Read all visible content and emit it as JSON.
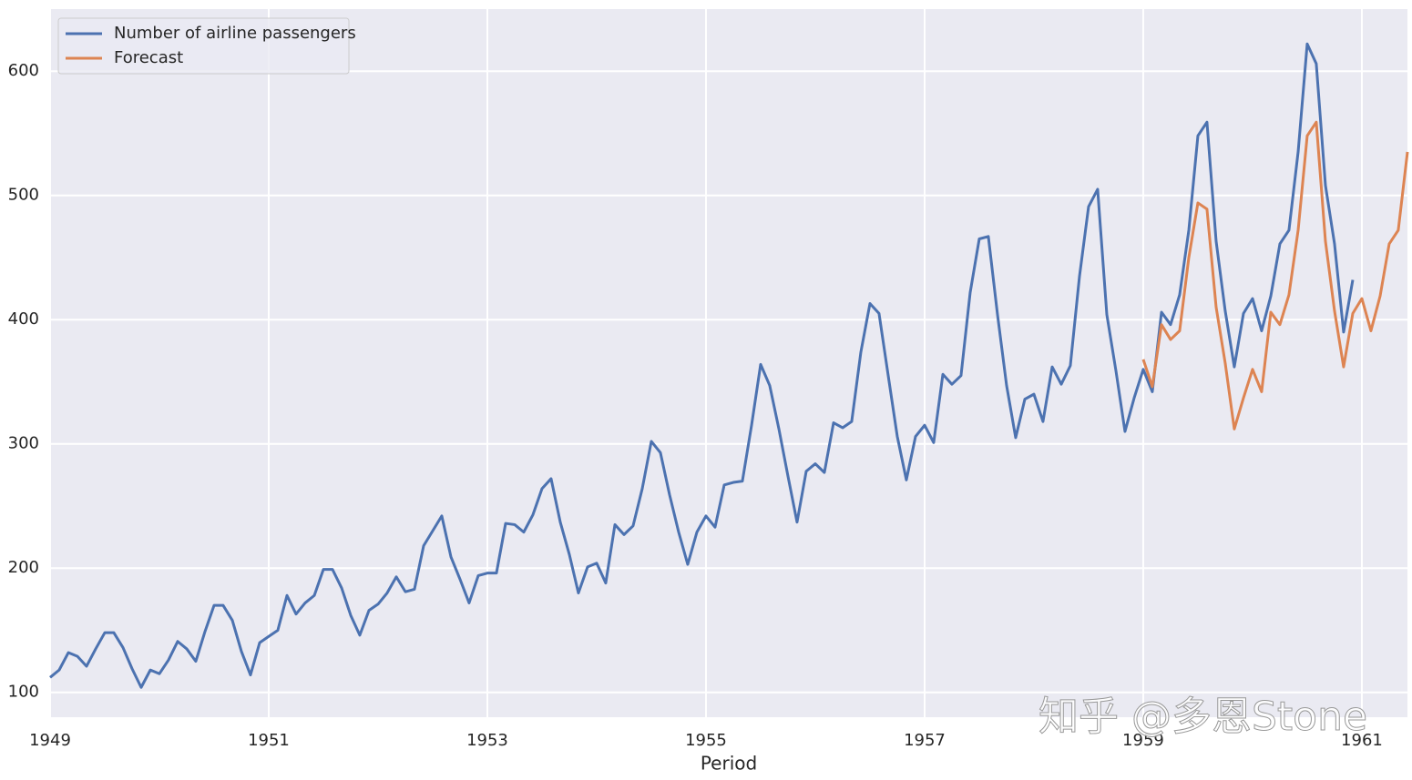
{
  "chart_data": {
    "type": "line",
    "xlabel": "Period",
    "watermark": "知乎 @多恩Stone",
    "xlim": [
      1949,
      1961.417
    ],
    "xticks": [
      1949,
      1951,
      1953,
      1955,
      1957,
      1959,
      1961
    ],
    "ylim": [
      80,
      650
    ],
    "yticks": [
      100,
      200,
      300,
      400,
      500,
      600
    ],
    "grid": true,
    "legend": "upper left",
    "series": [
      {
        "name": "Number of airline passengers",
        "color": "#4c72b0",
        "x": [
          1949,
          1949.083,
          1949.167,
          1949.25,
          1949.333,
          1949.417,
          1949.5,
          1949.583,
          1949.667,
          1949.75,
          1949.833,
          1949.917,
          1950,
          1950.083,
          1950.167,
          1950.25,
          1950.333,
          1950.417,
          1950.5,
          1950.583,
          1950.667,
          1950.75,
          1950.833,
          1950.917,
          1951,
          1951.083,
          1951.167,
          1951.25,
          1951.333,
          1951.417,
          1951.5,
          1951.583,
          1951.667,
          1951.75,
          1951.833,
          1951.917,
          1952,
          1952.083,
          1952.167,
          1952.25,
          1952.333,
          1952.417,
          1952.5,
          1952.583,
          1952.667,
          1952.75,
          1952.833,
          1952.917,
          1953,
          1953.083,
          1953.167,
          1953.25,
          1953.333,
          1953.417,
          1953.5,
          1953.583,
          1953.667,
          1953.75,
          1953.833,
          1953.917,
          1954,
          1954.083,
          1954.167,
          1954.25,
          1954.333,
          1954.417,
          1954.5,
          1954.583,
          1954.667,
          1954.75,
          1954.833,
          1954.917,
          1955,
          1955.083,
          1955.167,
          1955.25,
          1955.333,
          1955.417,
          1955.5,
          1955.583,
          1955.667,
          1955.75,
          1955.833,
          1955.917,
          1956,
          1956.083,
          1956.167,
          1956.25,
          1956.333,
          1956.417,
          1956.5,
          1956.583,
          1956.667,
          1956.75,
          1956.833,
          1956.917,
          1957,
          1957.083,
          1957.167,
          1957.25,
          1957.333,
          1957.417,
          1957.5,
          1957.583,
          1957.667,
          1957.75,
          1957.833,
          1957.917,
          1958,
          1958.083,
          1958.167,
          1958.25,
          1958.333,
          1958.417,
          1958.5,
          1958.583,
          1958.667,
          1958.75,
          1958.833,
          1958.917,
          1959,
          1959.083,
          1959.167,
          1959.25,
          1959.333,
          1959.417,
          1959.5,
          1959.583,
          1959.667,
          1959.75,
          1959.833,
          1959.917,
          1960,
          1960.083,
          1960.167,
          1960.25,
          1960.333,
          1960.417,
          1960.5,
          1960.583,
          1960.667,
          1960.75,
          1960.833,
          1960.917
        ],
        "values": [
          112,
          118,
          132,
          129,
          121,
          135,
          148,
          148,
          136,
          119,
          104,
          118,
          115,
          126,
          141,
          135,
          125,
          149,
          170,
          170,
          158,
          133,
          114,
          140,
          145,
          150,
          178,
          163,
          172,
          178,
          199,
          199,
          184,
          162,
          146,
          166,
          171,
          180,
          193,
          181,
          183,
          218,
          230,
          242,
          209,
          191,
          172,
          194,
          196,
          196,
          236,
          235,
          229,
          243,
          264,
          272,
          237,
          211,
          180,
          201,
          204,
          188,
          235,
          227,
          234,
          264,
          302,
          293,
          259,
          229,
          203,
          229,
          242,
          233,
          267,
          269,
          270,
          315,
          364,
          347,
          312,
          274,
          237,
          278,
          284,
          277,
          317,
          313,
          318,
          374,
          413,
          405,
          355,
          306,
          271,
          306,
          315,
          301,
          356,
          348,
          355,
          422,
          465,
          467,
          404,
          347,
          305,
          336,
          340,
          318,
          362,
          348,
          363,
          435,
          491,
          505,
          404,
          359,
          310,
          337,
          360,
          342,
          406,
          396,
          420,
          472,
          548,
          559,
          463,
          407,
          362,
          405,
          417,
          391,
          419,
          461,
          472,
          535,
          622,
          606,
          508,
          461,
          390,
          432
        ]
      },
      {
        "name": "Forecast",
        "color": "#dd8452",
        "x": [
          1959,
          1959.083,
          1959.167,
          1959.25,
          1959.333,
          1959.417,
          1959.5,
          1959.583,
          1959.667,
          1959.75,
          1959.833,
          1959.917,
          1960,
          1960.083,
          1960.167,
          1960.25,
          1960.333,
          1960.417,
          1960.5,
          1960.583,
          1960.667,
          1960.75,
          1960.833,
          1960.917,
          1961,
          1961.083,
          1961.167,
          1961.25,
          1961.333,
          1961.417
        ],
        "values": [
          368,
          346,
          396,
          384,
          391,
          450,
          494,
          489,
          410,
          365,
          312,
          337,
          360,
          342,
          406,
          396,
          420,
          472,
          548,
          559,
          463,
          407,
          362,
          405,
          417,
          391,
          419,
          461,
          472,
          535
        ]
      }
    ]
  }
}
